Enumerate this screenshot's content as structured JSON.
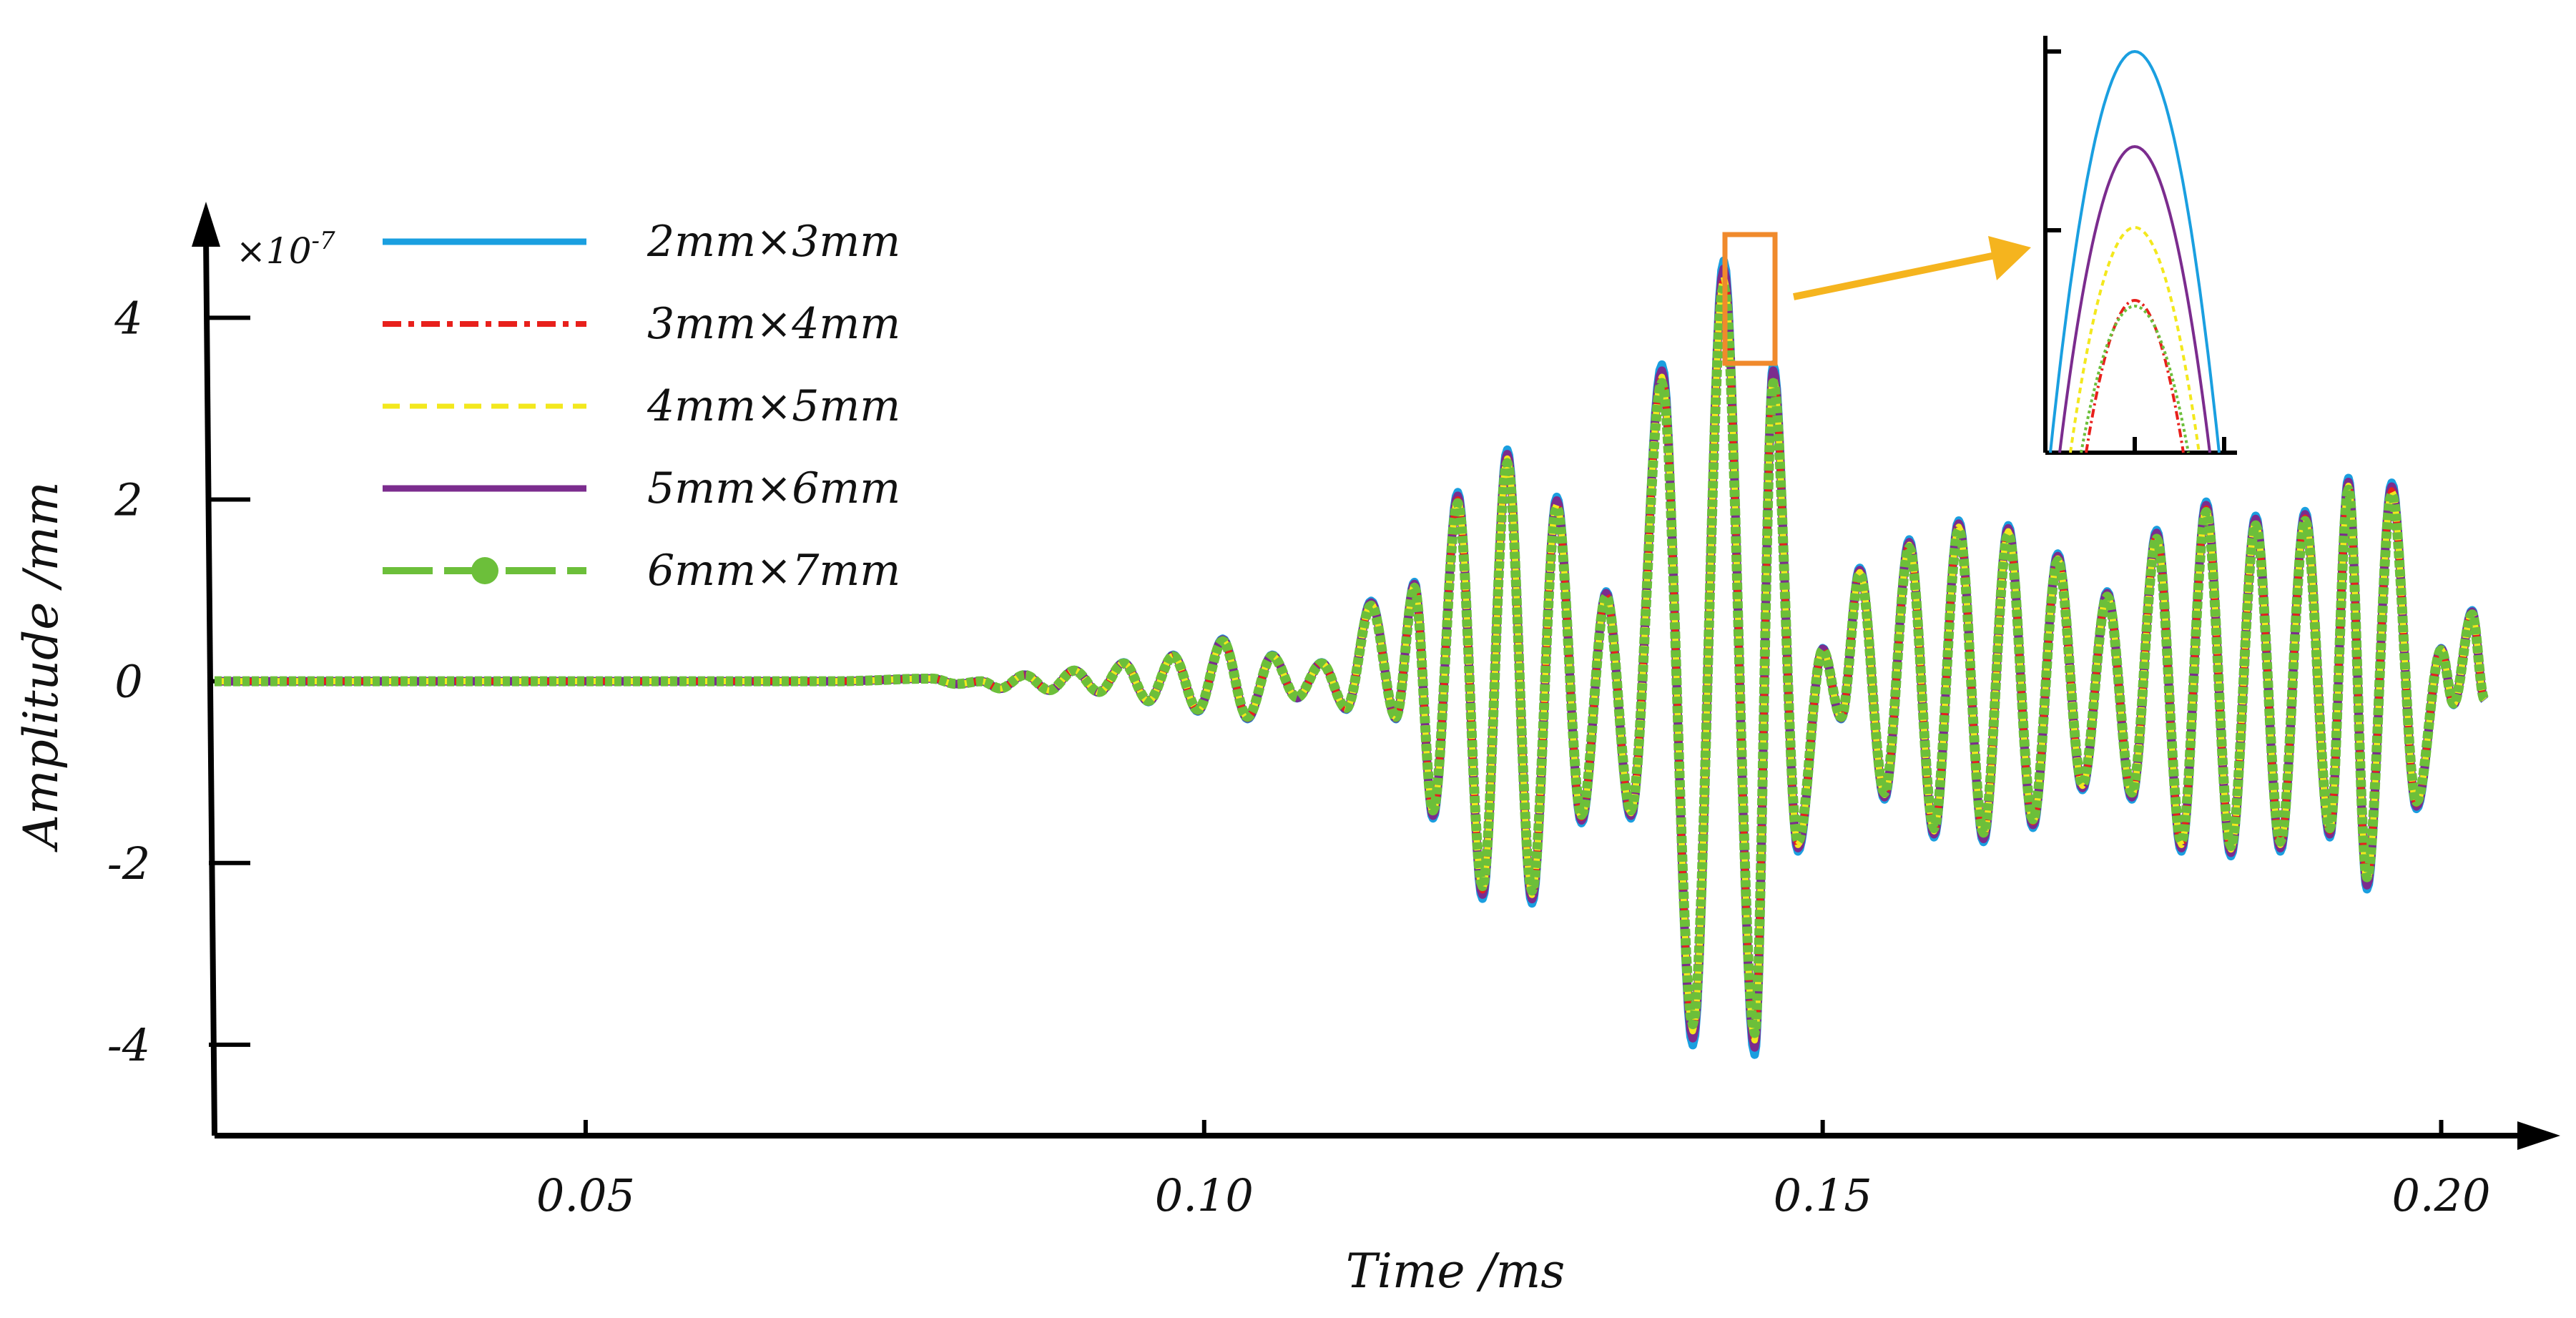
{
  "chart_data": {
    "type": "line",
    "title": "",
    "xlabel": "Time /ms",
    "ylabel": "Amplitude /mm",
    "y_scale_prefix": "×10",
    "y_scale_exponent": "-7",
    "xlim": [
      0.02,
      0.205
    ],
    "ylim": [
      -5.0,
      4.9
    ],
    "x_ticks": [
      {
        "value": 0.05,
        "label": "0.05"
      },
      {
        "value": 0.1,
        "label": "0.10"
      },
      {
        "value": 0.15,
        "label": "0.15"
      },
      {
        "value": 0.2,
        "label": "0.20"
      }
    ],
    "y_ticks": [
      {
        "value": 4,
        "label": "4"
      },
      {
        "value": 2,
        "label": "2"
      },
      {
        "value": 0,
        "label": "0"
      },
      {
        "value": -2,
        "label": "-2"
      },
      {
        "value": -4,
        "label": "-4"
      }
    ],
    "series": [
      {
        "name": "2mm×3mm",
        "color": "#1a9fe0",
        "style": "solid",
        "peak_scale": 1.04
      },
      {
        "name": "3mm×4mm",
        "color": "#e8201c",
        "style": "dashdot",
        "peak_scale": 1.0
      },
      {
        "name": "4mm×5mm",
        "color": "#f3e81d",
        "style": "dashed",
        "peak_scale": 1.0
      },
      {
        "name": "5mm×6mm",
        "color": "#7b2c8e",
        "style": "solid",
        "peak_scale": 1.02
      },
      {
        "name": "6mm×7mm",
        "color": "#6cbf3a",
        "style": "dashed-marker",
        "peak_scale": 0.98
      }
    ],
    "waveform_points": [
      [
        0.02,
        0.0
      ],
      [
        0.07,
        0.0
      ],
      [
        0.078,
        0.03
      ],
      [
        0.08,
        -0.03
      ],
      [
        0.082,
        0.0
      ],
      [
        0.0835,
        -0.08
      ],
      [
        0.0855,
        0.07
      ],
      [
        0.0875,
        -0.1
      ],
      [
        0.0895,
        0.12
      ],
      [
        0.0915,
        -0.12
      ],
      [
        0.0935,
        0.2
      ],
      [
        0.0955,
        -0.22
      ],
      [
        0.0975,
        0.28
      ],
      [
        0.0995,
        -0.32
      ],
      [
        0.1015,
        0.45
      ],
      [
        0.1035,
        -0.4
      ],
      [
        0.1055,
        0.28
      ],
      [
        0.1075,
        -0.18
      ],
      [
        0.1095,
        0.2
      ],
      [
        0.1115,
        -0.3
      ],
      [
        0.1135,
        0.85
      ],
      [
        0.1155,
        -0.4
      ],
      [
        0.117,
        1.05
      ],
      [
        0.1185,
        -1.45
      ],
      [
        0.1205,
        2.0
      ],
      [
        0.1225,
        -2.3
      ],
      [
        0.1245,
        2.45
      ],
      [
        0.1265,
        -2.35
      ],
      [
        0.1285,
        1.95
      ],
      [
        0.1305,
        -1.5
      ],
      [
        0.1325,
        0.95
      ],
      [
        0.1345,
        -1.45
      ],
      [
        0.137,
        3.35
      ],
      [
        0.1395,
        -3.85
      ],
      [
        0.142,
        4.45
      ],
      [
        0.1445,
        -3.95
      ],
      [
        0.146,
        3.35
      ],
      [
        0.148,
        -1.8
      ],
      [
        0.15,
        0.35
      ],
      [
        0.1515,
        -0.4
      ],
      [
        0.153,
        1.2
      ],
      [
        0.155,
        -1.25
      ],
      [
        0.157,
        1.5
      ],
      [
        0.159,
        -1.65
      ],
      [
        0.161,
        1.7
      ],
      [
        0.163,
        -1.7
      ],
      [
        0.165,
        1.65
      ],
      [
        0.167,
        -1.55
      ],
      [
        0.169,
        1.35
      ],
      [
        0.171,
        -1.15
      ],
      [
        0.173,
        0.95
      ],
      [
        0.175,
        -1.25
      ],
      [
        0.177,
        1.6
      ],
      [
        0.179,
        -1.8
      ],
      [
        0.181,
        1.9
      ],
      [
        0.183,
        -1.85
      ],
      [
        0.185,
        1.75
      ],
      [
        0.187,
        -1.8
      ],
      [
        0.189,
        1.8
      ],
      [
        0.191,
        -1.65
      ],
      [
        0.1925,
        2.15
      ],
      [
        0.194,
        -2.2
      ],
      [
        0.196,
        2.1
      ],
      [
        0.198,
        -1.35
      ],
      [
        0.2,
        0.35
      ],
      [
        0.201,
        -0.25
      ],
      [
        0.2025,
        0.75
      ],
      [
        0.2035,
        -0.2
      ]
    ],
    "inset": {
      "description_of_zoom": "Peak near t=0.142 ms",
      "zoom_x": [
        0.141,
        0.1432
      ],
      "zoom_y": [
        4.0,
        4.7
      ]
    }
  }
}
